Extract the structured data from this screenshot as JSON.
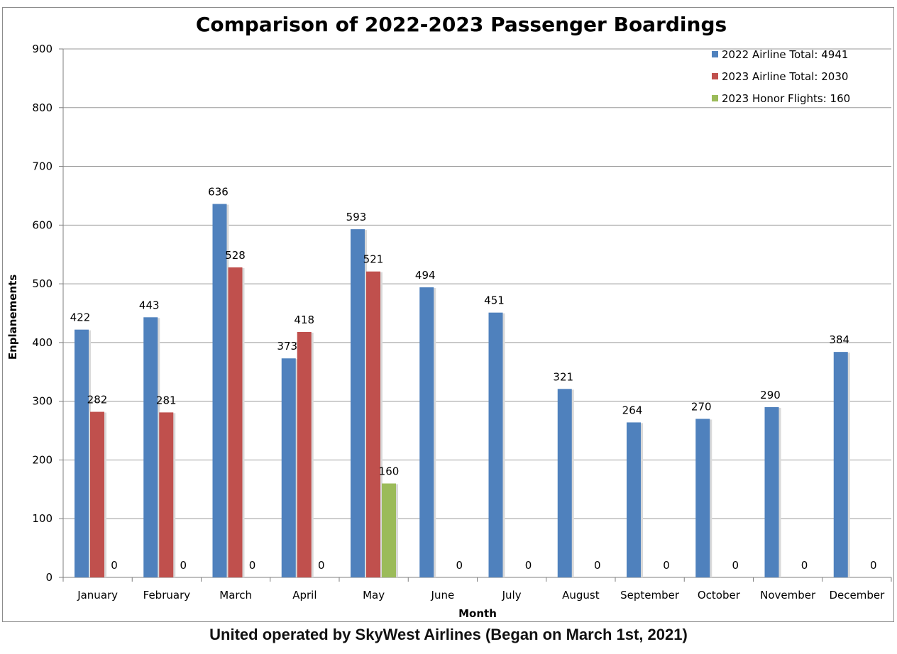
{
  "chart_data": {
    "type": "bar",
    "title": "Comparison of 2022-2023 Passenger Boardings",
    "xlabel": "Month",
    "ylabel": "Enplanements",
    "ylim": [
      0,
      900
    ],
    "yticks": [
      0,
      100,
      200,
      300,
      400,
      500,
      600,
      700,
      800,
      900
    ],
    "grid": true,
    "legend_position": "top-right",
    "categories": [
      "January",
      "February",
      "March",
      "April",
      "May",
      "June",
      "July",
      "August",
      "September",
      "October",
      "November",
      "December"
    ],
    "series": [
      {
        "name": "2022 Airline Total: 4941",
        "color": "#4f81bd",
        "values": [
          422,
          443,
          636,
          373,
          593,
          494,
          451,
          321,
          264,
          270,
          290,
          384
        ]
      },
      {
        "name": "2023 Airline Total: 2030",
        "color": "#c0504d",
        "values": [
          282,
          281,
          528,
          418,
          521,
          null,
          null,
          null,
          null,
          null,
          null,
          null
        ]
      },
      {
        "name": "2023 Honor Flights: 160",
        "color": "#9bbb59",
        "values": [
          0,
          0,
          0,
          0,
          160,
          0,
          0,
          0,
          0,
          0,
          0,
          0
        ]
      }
    ]
  },
  "caption": "United operated by SkyWest Airlines (Began on March 1st, 2021)"
}
